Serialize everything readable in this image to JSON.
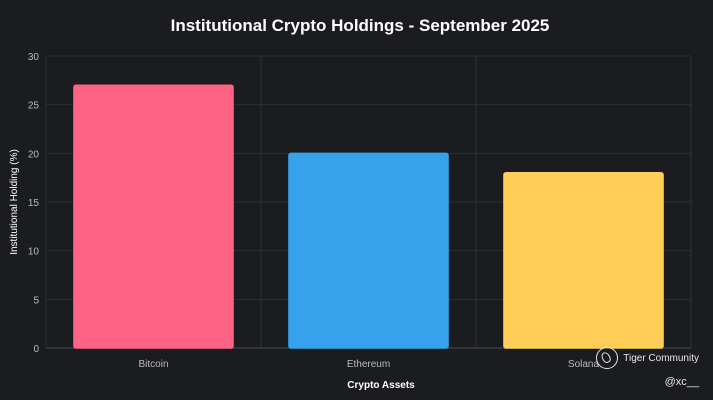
{
  "chart_data": {
    "type": "bar",
    "title": "Institutional Crypto Holdings - September 2025",
    "xlabel": "Crypto Assets",
    "ylabel": "Institutional Holding (%)",
    "categories": [
      "Bitcoin",
      "Ethereum",
      "Solana"
    ],
    "values": [
      27,
      20,
      18
    ],
    "ylim": [
      0,
      30
    ],
    "yticks": [
      0,
      5,
      10,
      15,
      20,
      25,
      30
    ],
    "colors": [
      "#ff6384",
      "#36a2eb",
      "#ffce56"
    ],
    "grid": true,
    "legend": "none"
  },
  "watermark": {
    "brand": "Tiger Community",
    "handle": "@xc__",
    "logo_icon": "tiger-community-logo-icon"
  }
}
